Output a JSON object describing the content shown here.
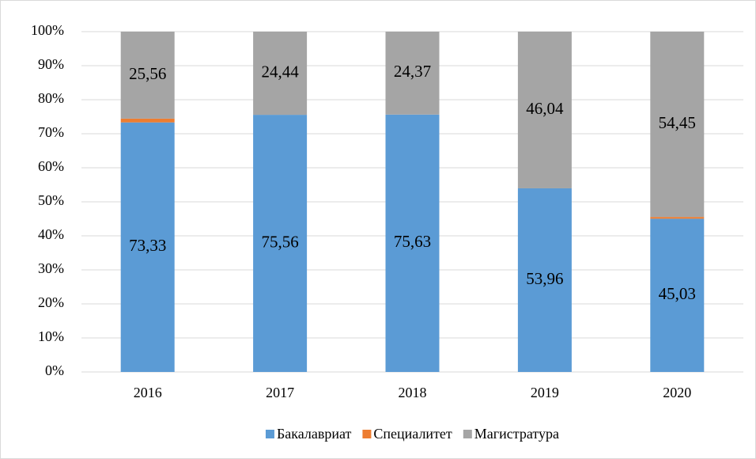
{
  "chart_data": {
    "type": "stacked_bar",
    "categories": [
      "2016",
      "2017",
      "2018",
      "2019",
      "2020"
    ],
    "series": [
      {
        "name": "Бакалавриат",
        "color": "#5b9bd5",
        "values": [
          73.33,
          75.56,
          75.63,
          53.96,
          45.03
        ],
        "value_labels": [
          "73,33",
          "75,56",
          "75,63",
          "53,96",
          "45,03"
        ]
      },
      {
        "name": "Специалитет",
        "color": "#ed7d31",
        "values": [
          1.11,
          0,
          0,
          0,
          0.52
        ]
      },
      {
        "name": "Магистратура",
        "color": "#a5a5a5",
        "values": [
          25.56,
          24.44,
          24.37,
          46.04,
          54.45
        ],
        "value_labels": [
          "25,56",
          "24,44",
          "24,37",
          "46,04",
          "54,45"
        ]
      }
    ],
    "ylim": [
      0,
      100
    ],
    "yticks": [
      {
        "value": 0,
        "label": "0%"
      },
      {
        "value": 10,
        "label": "10%"
      },
      {
        "value": 20,
        "label": "20%"
      },
      {
        "value": 30,
        "label": "30%"
      },
      {
        "value": 40,
        "label": "40%"
      },
      {
        "value": 50,
        "label": "50%"
      },
      {
        "value": 60,
        "label": "60%"
      },
      {
        "value": 70,
        "label": "70%"
      },
      {
        "value": 80,
        "label": "80%"
      },
      {
        "value": 90,
        "label": "90%"
      },
      {
        "value": 100,
        "label": "100%"
      }
    ],
    "grid": true,
    "legend": "bottom"
  }
}
